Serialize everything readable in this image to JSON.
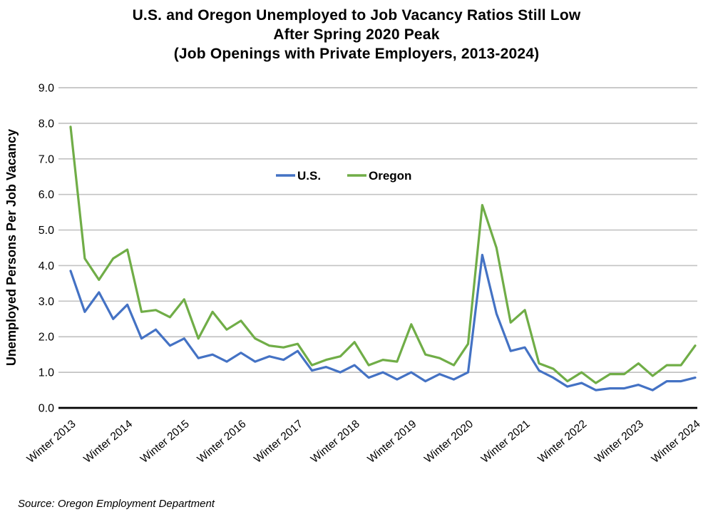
{
  "page": {
    "title_lines": [
      "U.S. and Oregon Unemployed to Job Vacancy Ratios Still Low",
      "After Spring 2020 Peak",
      "(Job Openings with Private Employers, 2013-2024)"
    ],
    "source_note": "Source: Oregon Employment Department"
  },
  "colors": {
    "us_line": "#4472C4",
    "oregon_line": "#70AD47",
    "gridline": "#C3C3C3",
    "axis": "#000000",
    "text": "#000000",
    "background": "#FFFFFF"
  },
  "chart_data": {
    "type": "line",
    "title": "U.S. and Oregon Unemployed to Job Vacancy Ratios Still Low After Spring 2020 Peak (Job Openings with Private Employers, 2013-2024)",
    "xlabel": "",
    "ylabel": "Unemployed Persons Per Job Vacancy",
    "ylim": [
      0.0,
      9.0
    ],
    "y_ticks": [
      "0.0",
      "1.0",
      "2.0",
      "3.0",
      "4.0",
      "5.0",
      "6.0",
      "7.0",
      "8.0",
      "9.0"
    ],
    "grid": "horizontal",
    "legend_position": "top-center-inside",
    "x_tick_every": 4,
    "x_tick_labels": [
      "Winter 2013",
      "Winter 2014",
      "Winter 2015",
      "Winter 2016",
      "Winter 2017",
      "Winter 2018",
      "Winter 2019",
      "Winter 2020",
      "Winter 2021",
      "Winter 2022",
      "Winter 2023",
      "Winter 2024"
    ],
    "categories": [
      "Winter 2013",
      "Spring 2013",
      "Summer 2013",
      "Fall 2013",
      "Winter 2014",
      "Spring 2014",
      "Summer 2014",
      "Fall 2014",
      "Winter 2015",
      "Spring 2015",
      "Summer 2015",
      "Fall 2015",
      "Winter 2016",
      "Spring 2016",
      "Summer 2016",
      "Fall 2016",
      "Winter 2017",
      "Spring 2017",
      "Summer 2017",
      "Fall 2017",
      "Winter 2018",
      "Spring 2018",
      "Summer 2018",
      "Fall 2018",
      "Winter 2019",
      "Spring 2019",
      "Summer 2019",
      "Fall 2019",
      "Winter 2020",
      "Spring 2020",
      "Summer 2020",
      "Fall 2020",
      "Winter 2021",
      "Spring 2021",
      "Summer 2021",
      "Fall 2021",
      "Winter 2022",
      "Spring 2022",
      "Summer 2022",
      "Fall 2022",
      "Winter 2023",
      "Spring 2023",
      "Summer 2023",
      "Fall 2023",
      "Winter 2024"
    ],
    "series": [
      {
        "name": "U.S.",
        "color": "#4472C4",
        "values": [
          3.85,
          2.7,
          3.25,
          2.5,
          2.9,
          1.95,
          2.2,
          1.75,
          1.95,
          1.4,
          1.5,
          1.3,
          1.55,
          1.3,
          1.45,
          1.35,
          1.6,
          1.05,
          1.15,
          1.0,
          1.2,
          0.85,
          1.0,
          0.8,
          1.0,
          0.75,
          0.95,
          0.8,
          1.0,
          4.3,
          2.65,
          1.6,
          1.7,
          1.05,
          0.85,
          0.6,
          0.7,
          0.5,
          0.55,
          0.55,
          0.65,
          0.5,
          0.75,
          0.75,
          0.85
        ]
      },
      {
        "name": "Oregon",
        "color": "#70AD47",
        "values": [
          7.9,
          4.2,
          3.6,
          4.2,
          4.45,
          2.7,
          2.75,
          2.55,
          3.05,
          1.95,
          2.7,
          2.2,
          2.45,
          1.95,
          1.75,
          1.7,
          1.8,
          1.2,
          1.35,
          1.45,
          1.85,
          1.2,
          1.35,
          1.3,
          2.35,
          1.5,
          1.4,
          1.2,
          1.8,
          5.7,
          4.5,
          2.4,
          2.75,
          1.25,
          1.1,
          0.75,
          1.0,
          0.7,
          0.95,
          0.95,
          1.25,
          0.9,
          1.2,
          1.2,
          1.75
        ]
      }
    ]
  }
}
